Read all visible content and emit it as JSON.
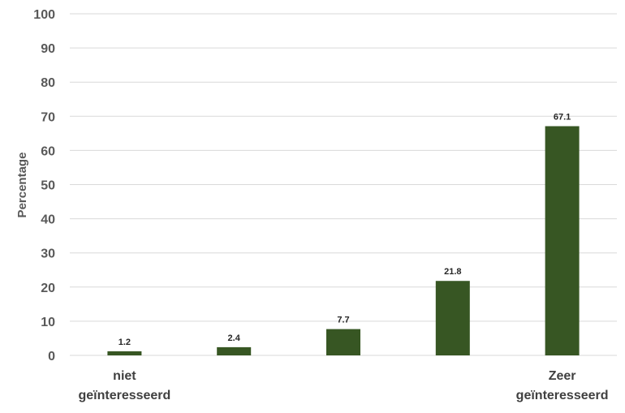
{
  "chart_data": {
    "type": "bar",
    "categories": [
      "niet geïnteresseerd",
      "",
      "",
      "",
      "Zeer geïnteresseerd"
    ],
    "values": [
      1.2,
      2.4,
      7.7,
      21.8,
      67.1
    ],
    "data_labels": [
      "1.2",
      "2.4",
      "7.7",
      "21.8",
      "67.1"
    ],
    "title": "",
    "xlabel": "",
    "ylabel": "Percentage",
    "ylim": [
      0,
      100
    ],
    "yticks": [
      "0",
      "10",
      "20",
      "30",
      "40",
      "50",
      "60",
      "70",
      "80",
      "90",
      "100"
    ],
    "grid": "horizontal",
    "legend": "none",
    "bar_color": "#375623",
    "grid_color": "#d9d9d9"
  }
}
